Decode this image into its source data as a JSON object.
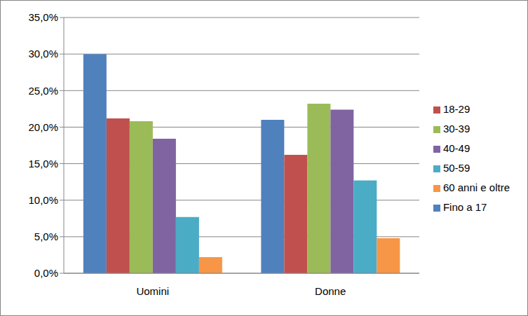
{
  "chart_data": {
    "type": "bar",
    "categories": [
      "Uomini",
      "Donne"
    ],
    "series": [
      {
        "name": "Fino a 17",
        "color": "#4F81BD",
        "values": [
          30.0,
          21.0
        ]
      },
      {
        "name": "18-29",
        "color": "#C0504D",
        "values": [
          21.2,
          16.2
        ]
      },
      {
        "name": "30-39",
        "color": "#9BBB59",
        "values": [
          20.8,
          23.2
        ]
      },
      {
        "name": "40-49",
        "color": "#8064A2",
        "values": [
          18.4,
          22.4
        ]
      },
      {
        "name": "50-59",
        "color": "#4BACC6",
        "values": [
          7.7,
          12.7
        ]
      },
      {
        "name": "60 anni e oltre",
        "color": "#F79646",
        "values": [
          2.2,
          4.8
        ]
      }
    ],
    "ylim": [
      0,
      35
    ],
    "yticks": [
      {
        "value": 0,
        "label": "0,0%"
      },
      {
        "value": 5,
        "label": "5,0%"
      },
      {
        "value": 10,
        "label": "10,0%"
      },
      {
        "value": 15,
        "label": "15,0%"
      },
      {
        "value": 20,
        "label": "20,0%"
      },
      {
        "value": 25,
        "label": "25,0%"
      },
      {
        "value": 30,
        "label": "30,0%"
      },
      {
        "value": 35,
        "label": "35,0%"
      }
    ],
    "grid": true,
    "legend": "right"
  }
}
